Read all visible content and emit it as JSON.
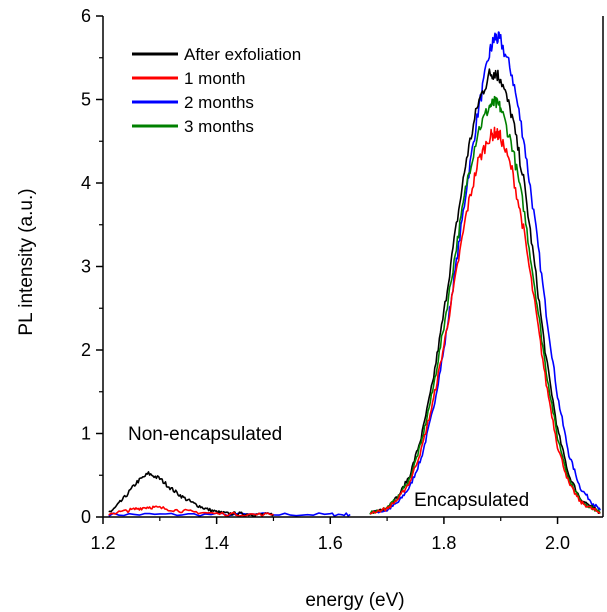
{
  "chart_data": {
    "type": "line",
    "xlabel": "energy (eV)",
    "ylabel": "PL intensity (a.u.)",
    "xlim": [
      1.2,
      2.08
    ],
    "ylim": [
      0,
      6
    ],
    "x_ticks": [
      "1.2",
      "1.4",
      "1.6",
      "1.8",
      "2.0"
    ],
    "y_ticks": [
      "0",
      "1",
      "2",
      "3",
      "4",
      "5",
      "6"
    ],
    "grid": false,
    "legend_position": "top-left",
    "series": [
      {
        "name": "After exfoliation",
        "color": "#000000",
        "segments": [
          {
            "x": [
              1.21,
              1.22,
              1.24,
              1.26,
              1.28,
              1.3,
              1.32,
              1.34,
              1.36,
              1.38,
              1.4,
              1.42,
              1.44,
              1.46,
              1.48,
              1.5
            ],
            "y": [
              0.05,
              0.1,
              0.25,
              0.42,
              0.52,
              0.46,
              0.34,
              0.24,
              0.16,
              0.1,
              0.06,
              0.04,
              0.04,
              0.03,
              0.03,
              0.03
            ]
          },
          {
            "x": [
              1.67,
              1.7,
              1.72,
              1.74,
              1.76,
              1.78,
              1.8,
              1.82,
              1.84,
              1.86,
              1.88,
              1.89,
              1.9,
              1.92,
              1.94,
              1.96,
              1.98,
              2.0,
              2.02,
              2.04,
              2.06,
              2.075
            ],
            "y": [
              0.05,
              0.12,
              0.25,
              0.5,
              0.95,
              1.6,
              2.45,
              3.4,
              4.3,
              4.95,
              5.3,
              5.33,
              5.25,
              4.8,
              4.05,
              3.0,
              1.9,
              1.05,
              0.5,
              0.22,
              0.12,
              0.05
            ]
          }
        ]
      },
      {
        "name": "1 month",
        "color": "#ff0000",
        "segments": [
          {
            "x": [
              1.21,
              1.24,
              1.26,
              1.28,
              1.3,
              1.33,
              1.36,
              1.4,
              1.45,
              1.5
            ],
            "y": [
              0.04,
              0.07,
              0.1,
              0.12,
              0.11,
              0.08,
              0.06,
              0.04,
              0.03,
              0.03
            ]
          },
          {
            "x": [
              1.67,
              1.7,
              1.72,
              1.74,
              1.76,
              1.78,
              1.8,
              1.82,
              1.84,
              1.86,
              1.88,
              1.89,
              1.9,
              1.92,
              1.94,
              1.96,
              1.98,
              2.0,
              2.02,
              2.04,
              2.06,
              2.075
            ],
            "y": [
              0.05,
              0.1,
              0.22,
              0.42,
              0.8,
              1.35,
              2.05,
              2.85,
              3.65,
              4.25,
              4.55,
              4.6,
              4.55,
              4.15,
              3.45,
              2.55,
              1.6,
              0.85,
              0.4,
              0.18,
              0.1,
              0.05
            ]
          }
        ]
      },
      {
        "name": "2 months",
        "color": "#0000ff",
        "segments": [
          {
            "x": [
              1.21,
              1.3,
              1.4,
              1.5,
              1.6,
              1.635
            ],
            "y": [
              0.03,
              0.03,
              0.03,
              0.03,
              0.03,
              0.03
            ]
          },
          {
            "x": [
              1.67,
              1.7,
              1.72,
              1.74,
              1.76,
              1.78,
              1.8,
              1.82,
              1.84,
              1.86,
              1.88,
              1.89,
              1.9,
              1.92,
              1.94,
              1.96,
              1.98,
              2.0,
              2.02,
              2.04,
              2.06,
              2.075
            ],
            "y": [
              0.05,
              0.08,
              0.18,
              0.36,
              0.7,
              1.25,
              2.0,
              2.95,
              3.95,
              4.85,
              5.55,
              5.75,
              5.7,
              5.3,
              4.55,
              3.55,
              2.45,
              1.45,
              0.75,
              0.35,
              0.18,
              0.08
            ]
          }
        ]
      },
      {
        "name": "3 months",
        "color": "#008000",
        "segments": [
          {
            "x": [
              1.67,
              1.7,
              1.72,
              1.74,
              1.76,
              1.78,
              1.8,
              1.82,
              1.84,
              1.86,
              1.88,
              1.89,
              1.9,
              1.92,
              1.94,
              1.96,
              1.98,
              2.0,
              2.02,
              2.04,
              2.06,
              2.075
            ],
            "y": [
              0.05,
              0.11,
              0.24,
              0.46,
              0.88,
              1.5,
              2.28,
              3.15,
              4.0,
              4.62,
              4.92,
              4.96,
              4.9,
              4.45,
              3.72,
              2.75,
              1.75,
              0.95,
              0.45,
              0.2,
              0.11,
              0.05
            ]
          }
        ]
      }
    ],
    "annotations": [
      {
        "text": "Non-encapsulated"
      },
      {
        "text": "Encapsulated"
      }
    ]
  }
}
